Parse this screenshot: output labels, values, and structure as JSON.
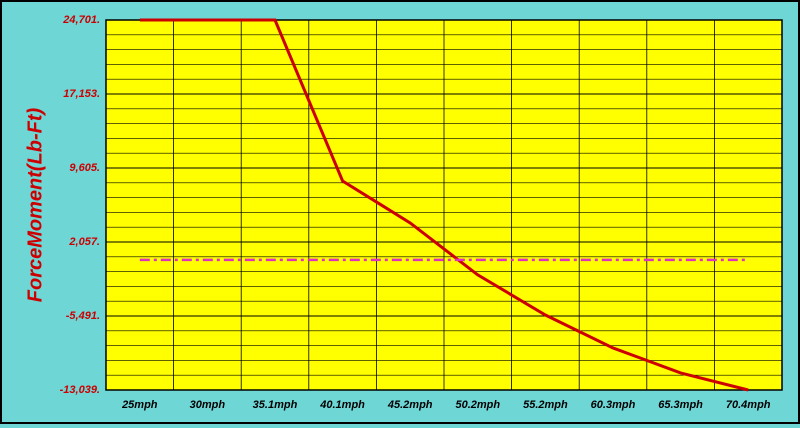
{
  "chart_data": {
    "type": "line",
    "y_label": "ForceMoment(Lb-Ft)",
    "categories": [
      "25mph",
      "30mph",
      "35.1mph",
      "40.1mph",
      "45.2mph",
      "50.2mph",
      "55.2mph",
      "60.3mph",
      "65.3mph",
      "70.4mph"
    ],
    "series": [
      {
        "color": "#cc0000",
        "line_style": "solid",
        "values": [
          24701,
          24701,
          24701,
          8280,
          4000,
          -1300,
          -5390,
          -8750,
          -11300,
          -13039
        ]
      },
      {
        "color": "#e030c0",
        "line_style": "dashdot",
        "values": [
          236,
          236,
          236,
          236,
          236,
          236,
          236,
          236,
          236,
          236
        ]
      }
    ],
    "ylim": [
      -13039,
      24701
    ],
    "yticks": [
      {
        "value": -13039,
        "label": "-13,039."
      },
      {
        "value": -5491,
        "label": "-5,491."
      },
      {
        "value": 2057,
        "label": "2,057."
      },
      {
        "value": 9605,
        "label": "9,605."
      },
      {
        "value": 17153,
        "label": "17,153."
      },
      {
        "value": 24701,
        "label": "24,701."
      }
    ],
    "grid": true,
    "plot_color": "#ffff00"
  }
}
